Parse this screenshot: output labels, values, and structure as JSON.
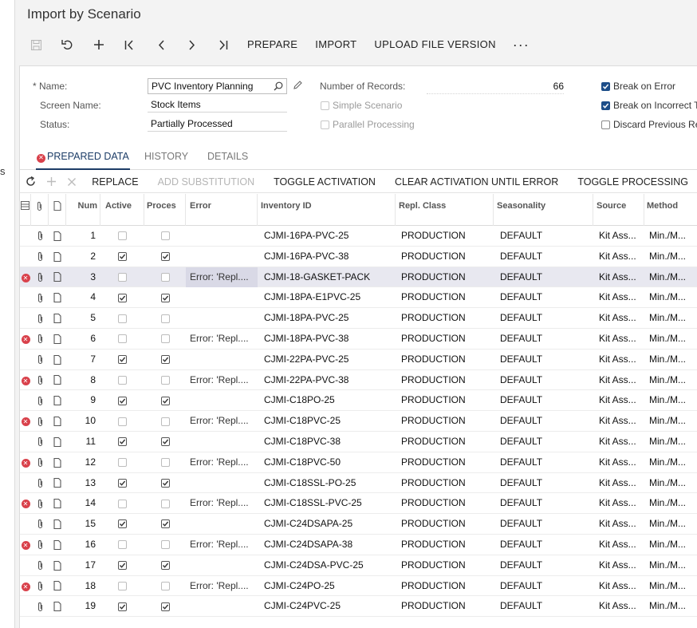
{
  "title": "Import by Scenario",
  "toolbar": {
    "icons": [
      "save-icon",
      "undo-icon",
      "add-icon",
      "first-icon",
      "prev-icon",
      "next-icon",
      "last-icon"
    ],
    "buttons": [
      "PREPARE",
      "IMPORT",
      "UPLOAD FILE VERSION"
    ],
    "more": "···"
  },
  "leftnav_stub": "s",
  "form": {
    "name_label": "* Name:",
    "name_value": "PVC Inventory Planning",
    "screen_label": "Screen Name:",
    "screen_value": "Stock Items",
    "status_label": "Status:",
    "status_value": "Partially Processed",
    "records_label": "Number of Records:",
    "records_value": "66",
    "simple_scenario": "Simple Scenario",
    "parallel_processing": "Parallel Processing",
    "break_on_error": "Break on Error",
    "break_on_incorrect": "Break on Incorrect Ta",
    "discard_previous": "Discard Previous Re"
  },
  "tabs": [
    "PREPARED DATA",
    "HISTORY",
    "DETAILS"
  ],
  "grid_toolbar": {
    "buttons": [
      "REPLACE",
      "ADD SUBSTITUTION",
      "TOGGLE ACTIVATION",
      "CLEAR ACTIVATION UNTIL ERROR",
      "TOGGLE PROCESSING"
    ]
  },
  "columns": [
    "Num",
    "Active",
    "Proces",
    "Error",
    "Inventory ID",
    "Repl. Class",
    "Seasonality",
    "Source",
    "Method"
  ],
  "rows": [
    {
      "num": "1",
      "active": false,
      "processed": false,
      "error": "",
      "inv": "CJMI-16PA-PVC-25",
      "repl": "PRODUCTION",
      "season": "DEFAULT",
      "source": "Kit Ass...",
      "method": "Min./M..."
    },
    {
      "num": "2",
      "active": true,
      "processed": true,
      "error": "",
      "inv": "CJMI-16PA-PVC-38",
      "repl": "PRODUCTION",
      "season": "DEFAULT",
      "source": "Kit Ass...",
      "method": "Min./M..."
    },
    {
      "num": "3",
      "active": false,
      "processed": false,
      "error": "Error: 'Repl....",
      "inv": "CJMI-18-GASKET-PACK",
      "repl": "PRODUCTION",
      "season": "DEFAULT",
      "source": "Kit Ass...",
      "method": "Min./M...",
      "haserr": true,
      "selected": true
    },
    {
      "num": "4",
      "active": true,
      "processed": true,
      "error": "",
      "inv": "CJMI-18PA-E1PVC-25",
      "repl": "PRODUCTION",
      "season": "DEFAULT",
      "source": "Kit Ass...",
      "method": "Min./M..."
    },
    {
      "num": "5",
      "active": false,
      "processed": false,
      "error": "",
      "inv": "CJMI-18PA-PVC-25",
      "repl": "PRODUCTION",
      "season": "DEFAULT",
      "source": "Kit Ass...",
      "method": "Min./M..."
    },
    {
      "num": "6",
      "active": false,
      "processed": false,
      "error": "Error: 'Repl....",
      "inv": "CJMI-18PA-PVC-38",
      "repl": "PRODUCTION",
      "season": "DEFAULT",
      "source": "Kit Ass...",
      "method": "Min./M...",
      "haserr": true
    },
    {
      "num": "7",
      "active": true,
      "processed": true,
      "error": "",
      "inv": "CJMI-22PA-PVC-25",
      "repl": "PRODUCTION",
      "season": "DEFAULT",
      "source": "Kit Ass...",
      "method": "Min./M..."
    },
    {
      "num": "8",
      "active": false,
      "processed": false,
      "error": "Error: 'Repl....",
      "inv": "CJMI-22PA-PVC-38",
      "repl": "PRODUCTION",
      "season": "DEFAULT",
      "source": "Kit Ass...",
      "method": "Min./M...",
      "haserr": true
    },
    {
      "num": "9",
      "active": true,
      "processed": true,
      "error": "",
      "inv": "CJMI-C18PO-25",
      "repl": "PRODUCTION",
      "season": "DEFAULT",
      "source": "Kit Ass...",
      "method": "Min./M..."
    },
    {
      "num": "10",
      "active": false,
      "processed": false,
      "error": "Error: 'Repl....",
      "inv": "CJMI-C18PVC-25",
      "repl": "PRODUCTION",
      "season": "DEFAULT",
      "source": "Kit Ass...",
      "method": "Min./M...",
      "haserr": true
    },
    {
      "num": "11",
      "active": true,
      "processed": true,
      "error": "",
      "inv": "CJMI-C18PVC-38",
      "repl": "PRODUCTION",
      "season": "DEFAULT",
      "source": "Kit Ass...",
      "method": "Min./M..."
    },
    {
      "num": "12",
      "active": false,
      "processed": false,
      "error": "Error: 'Repl....",
      "inv": "CJMI-C18PVC-50",
      "repl": "PRODUCTION",
      "season": "DEFAULT",
      "source": "Kit Ass...",
      "method": "Min./M...",
      "haserr": true
    },
    {
      "num": "13",
      "active": true,
      "processed": true,
      "error": "",
      "inv": "CJMI-C18SSL-PO-25",
      "repl": "PRODUCTION",
      "season": "DEFAULT",
      "source": "Kit Ass...",
      "method": "Min./M..."
    },
    {
      "num": "14",
      "active": false,
      "processed": false,
      "error": "Error: 'Repl....",
      "inv": "CJMI-C18SSL-PVC-25",
      "repl": "PRODUCTION",
      "season": "DEFAULT",
      "source": "Kit Ass...",
      "method": "Min./M...",
      "haserr": true
    },
    {
      "num": "15",
      "active": true,
      "processed": true,
      "error": "",
      "inv": "CJMI-C24DSAPA-25",
      "repl": "PRODUCTION",
      "season": "DEFAULT",
      "source": "Kit Ass...",
      "method": "Min./M..."
    },
    {
      "num": "16",
      "active": false,
      "processed": false,
      "error": "Error: 'Repl....",
      "inv": "CJMI-C24DSAPA-38",
      "repl": "PRODUCTION",
      "season": "DEFAULT",
      "source": "Kit Ass...",
      "method": "Min./M...",
      "haserr": true
    },
    {
      "num": "17",
      "active": true,
      "processed": true,
      "error": "",
      "inv": "CJMI-C24DSA-PVC-25",
      "repl": "PRODUCTION",
      "season": "DEFAULT",
      "source": "Kit Ass...",
      "method": "Min./M..."
    },
    {
      "num": "18",
      "active": false,
      "processed": false,
      "error": "Error: 'Repl....",
      "inv": "CJMI-C24PO-25",
      "repl": "PRODUCTION",
      "season": "DEFAULT",
      "source": "Kit Ass...",
      "method": "Min./M...",
      "haserr": true
    },
    {
      "num": "19",
      "active": true,
      "processed": true,
      "error": "",
      "inv": "CJMI-C24PVC-25",
      "repl": "PRODUCTION",
      "season": "DEFAULT",
      "source": "Kit Ass...",
      "method": "Min./M..."
    }
  ]
}
